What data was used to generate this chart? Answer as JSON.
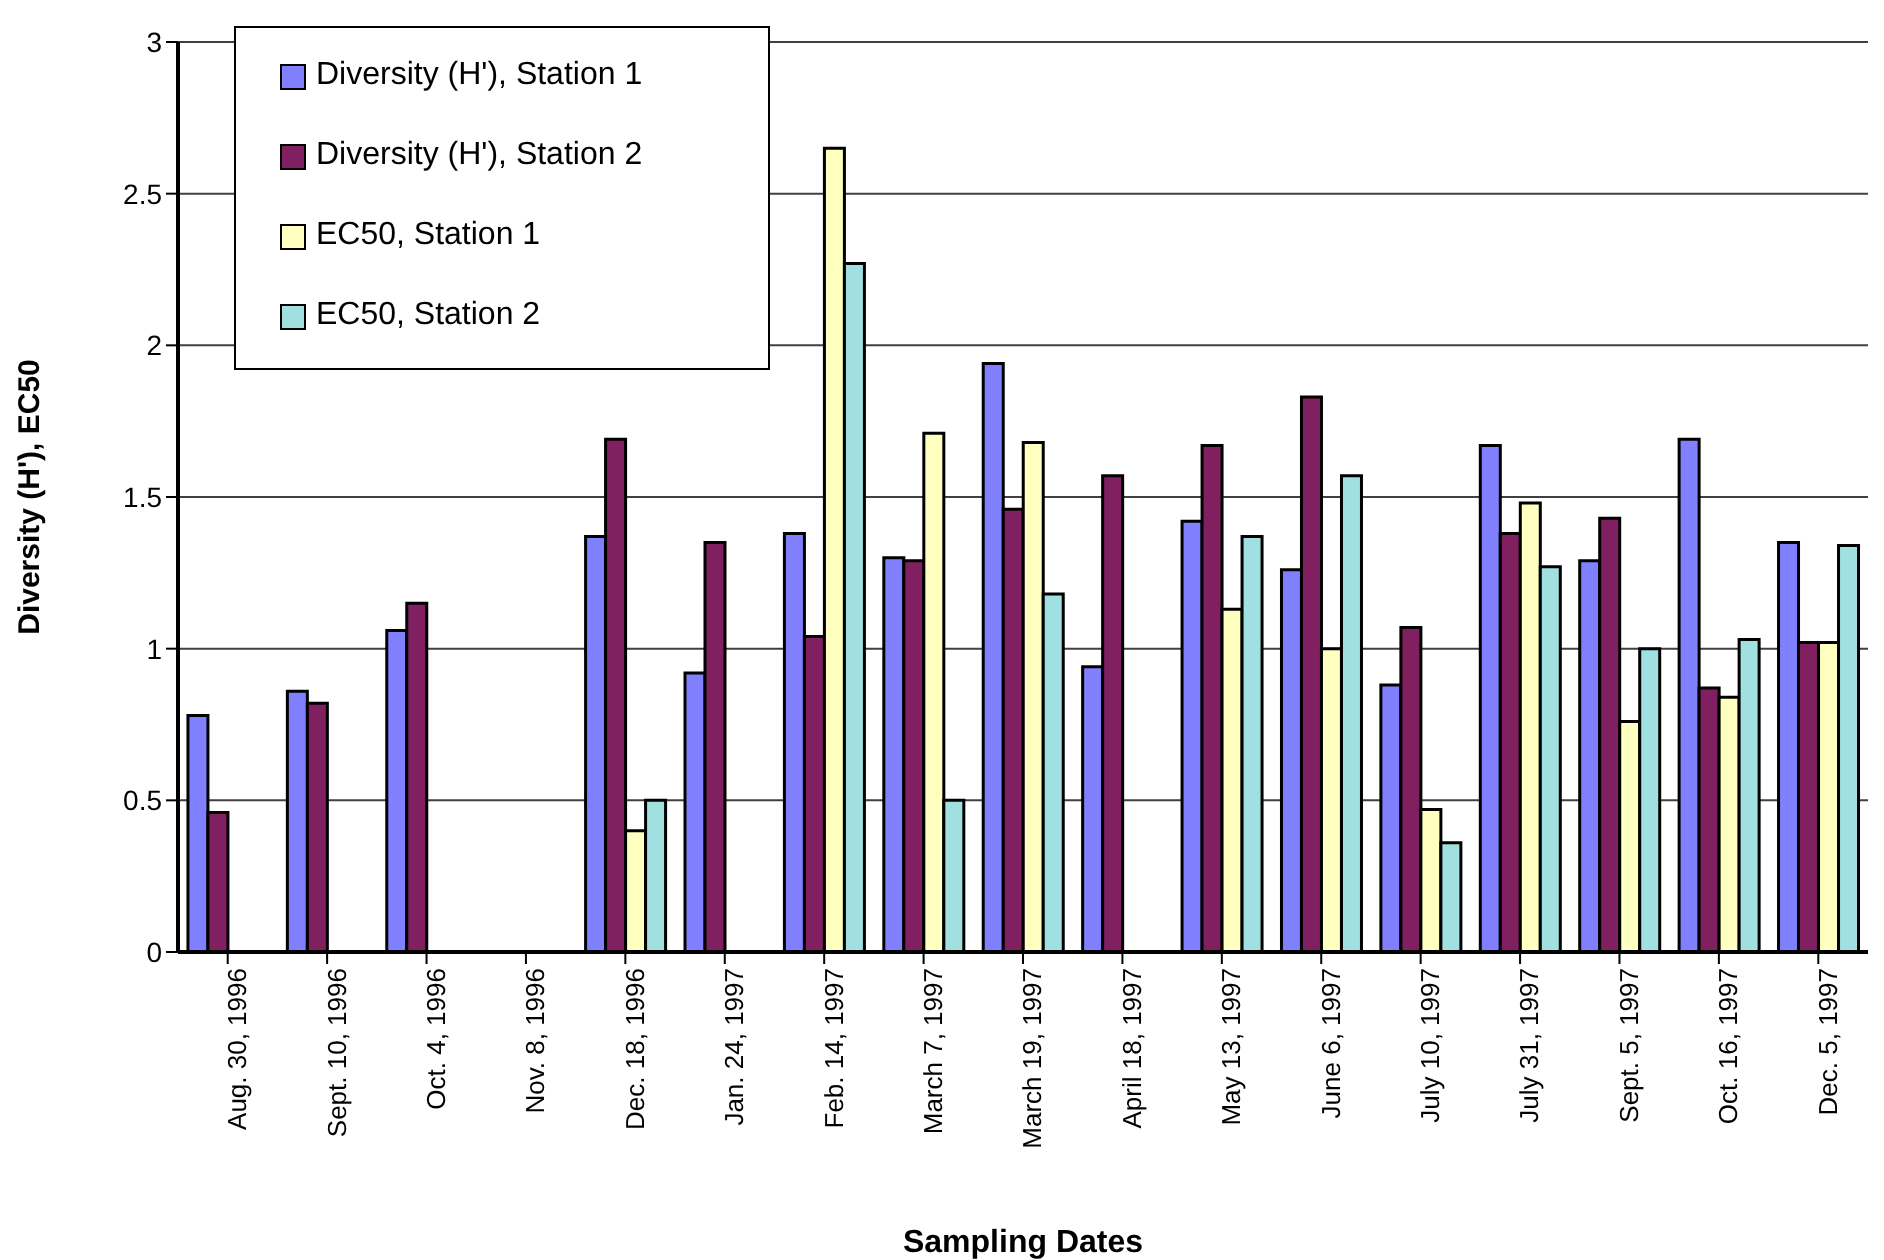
{
  "chart_data": {
    "type": "bar",
    "xlabel": "Sampling Dates",
    "ylabel": "Diversity (H'), EC50",
    "categories": [
      "Aug. 30, 1996",
      "Sept. 10, 1996",
      "Oct. 4, 1996",
      "Nov. 8, 1996",
      "Dec. 18, 1996",
      "Jan. 24, 1997",
      "Feb. 14, 1997",
      "March 7, 1997",
      "March 19, 1997",
      "April 18, 1997",
      "May 13, 1997",
      "June 6, 1997",
      "July 10, 1997",
      "July 31, 1997",
      "Sept. 5, 1997",
      "Oct. 16, 1997",
      "Dec. 5, 1997"
    ],
    "series": [
      {
        "name": "Diversity (H'), Station 1",
        "color": "#8080ff",
        "values": [
          0.78,
          0.86,
          1.06,
          null,
          1.37,
          0.92,
          1.38,
          1.3,
          1.94,
          0.94,
          1.42,
          1.26,
          0.88,
          1.67,
          1.29,
          1.69,
          1.35
        ]
      },
      {
        "name": "Diversity (H'), Station 2",
        "color": "#802060",
        "values": [
          0.46,
          0.82,
          1.15,
          null,
          1.69,
          1.35,
          1.04,
          1.29,
          1.46,
          1.57,
          1.67,
          1.83,
          1.07,
          1.38,
          1.43,
          0.87,
          1.02
        ]
      },
      {
        "name": "EC50, Station 1",
        "color": "#ffffc0",
        "values": [
          null,
          null,
          null,
          null,
          0.4,
          null,
          2.65,
          1.71,
          1.68,
          null,
          1.13,
          1.0,
          0.47,
          1.48,
          0.76,
          0.84,
          1.02
        ]
      },
      {
        "name": "EC50, Station 2",
        "color": "#a0e0e0",
        "values": [
          null,
          null,
          null,
          null,
          0.5,
          null,
          2.27,
          0.5,
          1.18,
          null,
          1.37,
          1.57,
          0.36,
          1.27,
          1.0,
          1.03,
          1.34
        ]
      }
    ],
    "ylim": [
      0,
      3
    ],
    "yticks": [
      0,
      0.5,
      1,
      1.5,
      2,
      2.5,
      3
    ],
    "grid": "y",
    "legend": "top left"
  }
}
